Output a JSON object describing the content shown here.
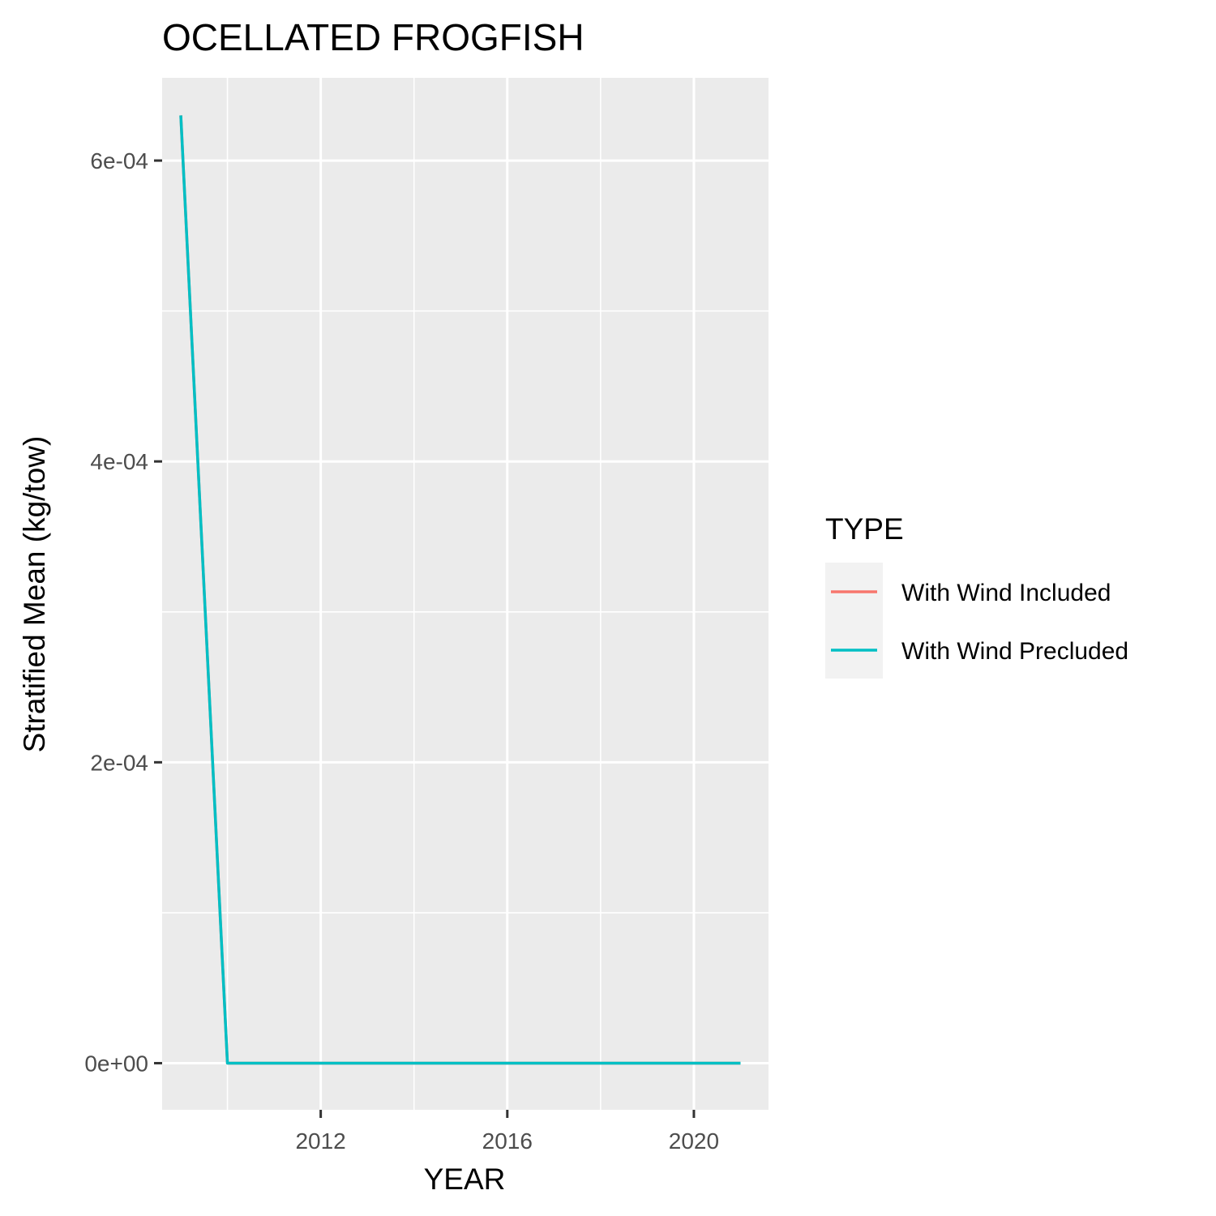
{
  "chart_data": {
    "type": "line",
    "title": "OCELLATED FROGFISH",
    "xlabel": "YEAR",
    "ylabel": "Stratified Mean (kg/tow)",
    "xlim": [
      2008.6,
      2021.6
    ],
    "ylim": [
      -3.1e-05,
      0.000655
    ],
    "x_ticks": [
      2012,
      2016,
      2020
    ],
    "x_tick_labels": [
      "2012",
      "2016",
      "2020"
    ],
    "x_minor_ticks": [
      2010,
      2014,
      2018
    ],
    "y_ticks": [
      0,
      0.0002,
      0.0004,
      0.0006
    ],
    "y_tick_labels": [
      "0e+00",
      "2e-04",
      "4e-04",
      "6e-04"
    ],
    "y_minor_ticks": [
      0.0001,
      0.0003,
      0.0005
    ],
    "grid": true,
    "legend": {
      "title": "TYPE",
      "position": "right",
      "entries": [
        "With Wind Included",
        "With Wind Precluded"
      ]
    },
    "series": [
      {
        "name": "With Wind Included",
        "color": "#F8766D",
        "x": [
          2009,
          2010,
          2011,
          2012,
          2013,
          2014,
          2015,
          2016,
          2017,
          2018,
          2019,
          2020,
          2021
        ],
        "values": [
          0.00063,
          0,
          0,
          0,
          0,
          0,
          0,
          0,
          0,
          0,
          0,
          0,
          0
        ]
      },
      {
        "name": "With Wind Precluded",
        "color": "#00BFC4",
        "x": [
          2009,
          2010,
          2011,
          2012,
          2013,
          2014,
          2015,
          2016,
          2017,
          2018,
          2019,
          2020,
          2021
        ],
        "values": [
          0.00063,
          0,
          0,
          0,
          0,
          0,
          0,
          0,
          0,
          0,
          0,
          0,
          0
        ]
      }
    ]
  }
}
